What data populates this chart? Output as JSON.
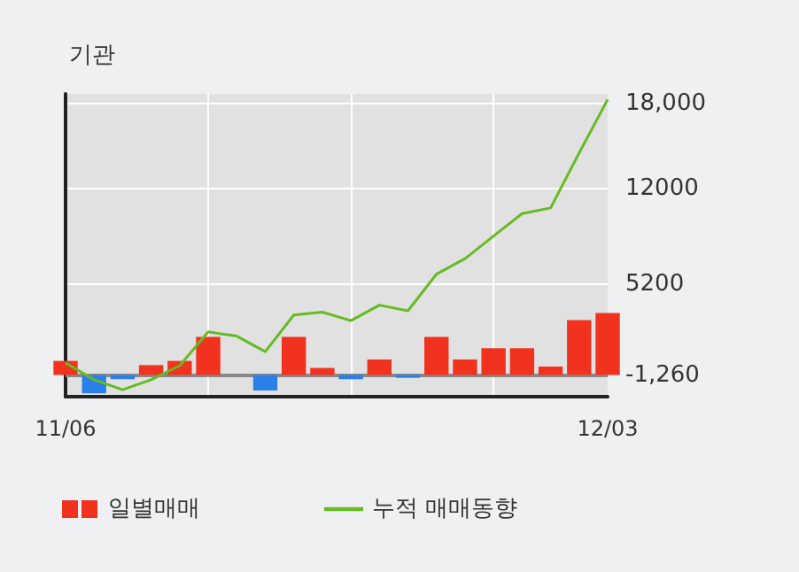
{
  "chart_data": {
    "type": "bar",
    "title": "기관",
    "categories": [
      "11/06",
      null,
      null,
      null,
      null,
      null,
      null,
      null,
      null,
      null,
      null,
      null,
      null,
      null,
      null,
      null,
      null,
      null,
      null,
      "12/03"
    ],
    "series": [
      {
        "name": "일별매매",
        "color": "#f0321e",
        "base": [
          -1260,
          -1260,
          -1260,
          -1260,
          -1260,
          -1260,
          null,
          -1260,
          -1260,
          -1260,
          -1260,
          -1260,
          -1260,
          -1260,
          -1260,
          -1260,
          -1260,
          -1260,
          -1260,
          -1260
        ],
        "values": [
          1000,
          -1300,
          -300,
          700,
          1000,
          2700,
          null,
          -1100,
          2700,
          500,
          -300,
          1100,
          -200,
          2700,
          1100,
          1900,
          1900,
          600,
          3900,
          4400
        ],
        "colors": [
          "#f0321e",
          "#2a7fe8",
          "#2a7fe8",
          "#f0321e",
          "#f0321e",
          "#f0321e",
          "#f0321e",
          "#2a7fe8",
          "#f0321e",
          "#f0321e",
          "#2a7fe8",
          "#f0321e",
          "#2a7fe8",
          "#f0321e",
          "#f0321e",
          "#f0321e",
          "#f0321e",
          "#f0321e",
          "#f0321e",
          "#f0321e"
        ]
      },
      {
        "name": "누적 매매동향",
        "type": "line",
        "color": "#66bb22",
        "values": [
          -400,
          -1600,
          -2300,
          -1600,
          -600,
          1800,
          1500,
          400,
          3000,
          3200,
          2600,
          3700,
          3300,
          5900,
          7000,
          8600,
          10200,
          10600,
          14500,
          18300
        ]
      }
    ],
    "ylim": [
      -2800,
      18700
    ],
    "yticks": [
      {
        "value": -1260,
        "label": "-1,260"
      },
      5200,
      12000,
      {
        "value": 18000,
        "label": "18,000"
      }
    ],
    "ref_lines": [
      {
        "axis": "y",
        "value": -1260,
        "color": "#888888"
      }
    ],
    "grid": true,
    "legend": "bottom left",
    "marker": "none",
    "line_style": "solid"
  }
}
